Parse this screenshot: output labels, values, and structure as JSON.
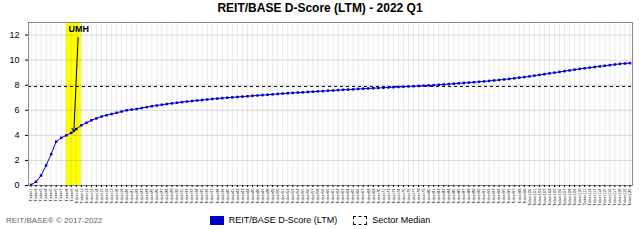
{
  "chart_data": {
    "type": "line",
    "title": "REIT/BASE D-Score (LTM) - 2022 Q1",
    "categories": [
      "Ticker1",
      "Ticker2",
      "Ticker3",
      "Ticker4",
      "Ticker5",
      "Ticker6",
      "Ticker7",
      "Ticker8",
      "Ticker9",
      "Ticker10",
      "Ticker11",
      "Ticker12",
      "Ticker13",
      "Ticker14",
      "Ticker15",
      "Ticker16",
      "Ticker17",
      "Ticker18",
      "Ticker19",
      "Ticker20",
      "Ticker21",
      "Ticker22",
      "Ticker23",
      "Ticker24",
      "Ticker25",
      "Ticker26",
      "Ticker27",
      "Ticker28",
      "Ticker29",
      "Ticker30",
      "Ticker31",
      "Ticker32",
      "Ticker33",
      "Ticker34",
      "Ticker35",
      "Ticker36",
      "Ticker37",
      "Ticker38",
      "Ticker39",
      "Ticker40",
      "Ticker41",
      "Ticker42",
      "Ticker43",
      "Ticker44",
      "Ticker45",
      "Ticker46",
      "Ticker47",
      "Ticker48",
      "Ticker49",
      "Ticker50",
      "Ticker51",
      "Ticker52",
      "Ticker53",
      "Ticker54",
      "Ticker55",
      "Ticker56",
      "Ticker57",
      "Ticker58",
      "Ticker59",
      "Ticker60",
      "Ticker61",
      "Ticker62",
      "Ticker63",
      "Ticker64",
      "Ticker65",
      "Ticker66",
      "Ticker67",
      "Ticker68",
      "Ticker69",
      "Ticker70",
      "Ticker71",
      "Ticker72",
      "Ticker73",
      "Ticker74",
      "Ticker75",
      "Ticker76",
      "Ticker77",
      "Ticker78",
      "Ticker79",
      "Ticker80",
      "Ticker81",
      "Ticker82",
      "Ticker83",
      "Ticker84",
      "Ticker85",
      "Ticker86",
      "Ticker87",
      "Ticker88",
      "Ticker89",
      "Ticker90",
      "Ticker91",
      "Ticker92",
      "Ticker93",
      "Ticker94",
      "Ticker95",
      "Ticker96",
      "Ticker97",
      "Ticker98",
      "Ticker99",
      "Ticker100",
      "Ticker101",
      "Ticker102",
      "Ticker103",
      "Ticker104",
      "Ticker105",
      "Ticker106",
      "Ticker107",
      "Ticker108",
      "Ticker109",
      "Ticker110",
      "Ticker111",
      "Ticker112",
      "Ticker113",
      "Ticker114",
      "Ticker115",
      "Ticker116",
      "Ticker117",
      "Ticker118",
      "Ticker119",
      "Ticker120"
    ],
    "series": [
      {
        "name": "REIT/BASE D-Score (LTM)",
        "color": "#0000CC",
        "marker": "square",
        "values": [
          0.05,
          0.3,
          0.8,
          1.6,
          2.5,
          3.5,
          3.8,
          4.0,
          4.2,
          4.5,
          4.8,
          5.0,
          5.2,
          5.35,
          5.5,
          5.6,
          5.7,
          5.8,
          5.9,
          6.0,
          6.05,
          6.1,
          6.18,
          6.25,
          6.32,
          6.38,
          6.44,
          6.5,
          6.55,
          6.6,
          6.65,
          6.7,
          6.74,
          6.78,
          6.82,
          6.86,
          6.9,
          6.93,
          6.97,
          7.0,
          7.03,
          7.06,
          7.09,
          7.12,
          7.15,
          7.18,
          7.21,
          7.24,
          7.27,
          7.3,
          7.33,
          7.36,
          7.38,
          7.41,
          7.43,
          7.46,
          7.48,
          7.51,
          7.53,
          7.56,
          7.58,
          7.61,
          7.63,
          7.65,
          7.67,
          7.7,
          7.72,
          7.74,
          7.76,
          7.78,
          7.8,
          7.82,
          7.84,
          7.86,
          7.88,
          7.9,
          7.92,
          7.94,
          7.96,
          7.98,
          8.0,
          8.03,
          8.06,
          8.09,
          8.12,
          8.15,
          8.18,
          8.21,
          8.24,
          8.27,
          8.3,
          8.34,
          8.38,
          8.42,
          8.46,
          8.5,
          8.55,
          8.6,
          8.65,
          8.7,
          8.76,
          8.82,
          8.88,
          8.94,
          9.0,
          9.06,
          9.12,
          9.18,
          9.24,
          9.3,
          9.35,
          9.4,
          9.45,
          9.5,
          9.55,
          9.6,
          9.65,
          9.7,
          9.73,
          9.76
        ]
      }
    ],
    "reference_lines": [
      {
        "name": "Sector Median",
        "value": 7.9,
        "color": "#000000",
        "line_style": "dashed"
      }
    ],
    "highlight": {
      "from": "Ticker8",
      "to": "Ticker11",
      "color": "#FFFF00"
    },
    "annotations": [
      {
        "text": "UMH",
        "category": "Ticker9"
      }
    ],
    "ylim": [
      0,
      13
    ],
    "yticks": [
      0,
      2,
      4,
      6,
      8,
      10,
      12
    ],
    "grid": true,
    "legend": "bottom",
    "footer": "REIT/BASE® © 2017-2022"
  }
}
